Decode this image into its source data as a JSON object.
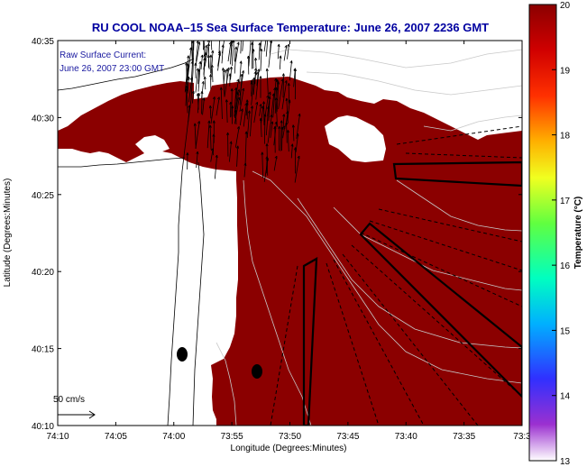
{
  "title": "RU COOL   NOAA–15  Sea Surface Temperature:  June 26, 2007 2236 GMT",
  "annotation": {
    "line1": "Raw Surface Current:",
    "line2": "June 26, 2007 23:00 GMT"
  },
  "scale_label": "50 cm/s",
  "axes": {
    "xlabel": "Longitude (Degrees:Minutes)",
    "ylabel": "Latitude (Degrees:Minutes)",
    "xticks": [
      "74:10",
      "74:05",
      "74:00",
      "73:55",
      "73:50",
      "73:45",
      "73:40",
      "73:35",
      "73:3"
    ],
    "yticks": [
      "40:35",
      "40:30",
      "40:25",
      "40:20",
      "40:15",
      "40:10"
    ]
  },
  "colorbar": {
    "label": "Temperature (°C)",
    "ticks": [
      "20",
      "19",
      "18",
      "17",
      "16",
      "15",
      "14",
      "13"
    ],
    "min": 13,
    "max": 20
  },
  "colors": {
    "sst_fill": "#8b0000",
    "title": "#0000a0",
    "vectors": "#000000",
    "contours": "#bbbbbb"
  }
}
